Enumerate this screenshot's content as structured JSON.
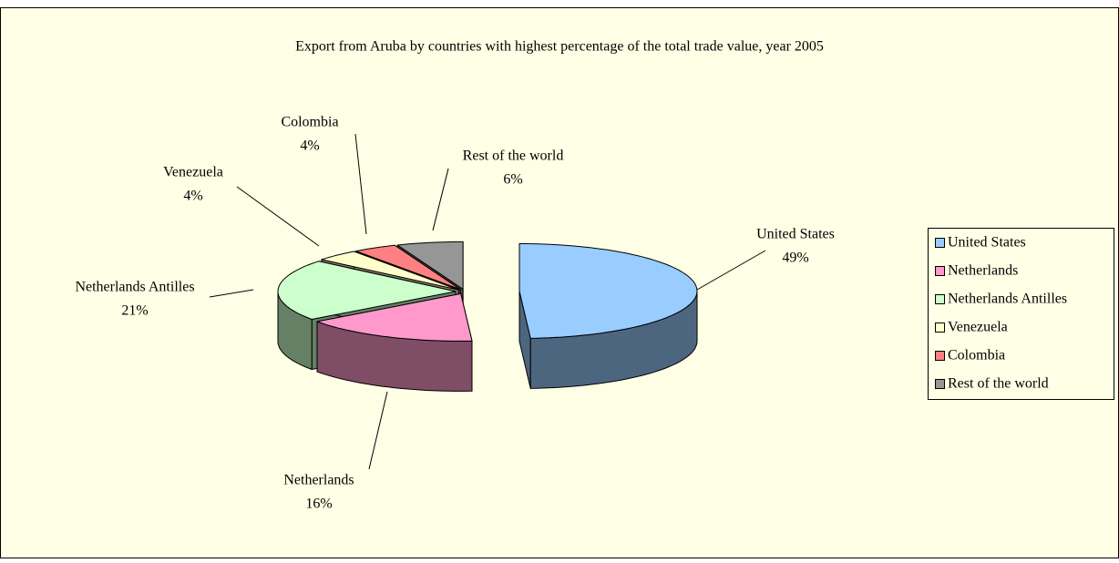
{
  "chart_data": {
    "type": "pie",
    "title": "Export from Aruba by countries with highest percentage of the total trade value, year 2005",
    "categories": [
      "United States",
      "Netherlands",
      "Netherlands Antilles",
      "Venezuela",
      "Colombia",
      "Rest of the world"
    ],
    "values": [
      49,
      16,
      21,
      4,
      4,
      6
    ],
    "value_labels": [
      "49%",
      "16%",
      "21%",
      "4%",
      "4%",
      "6%"
    ],
    "colors": [
      "#99ccff",
      "#ff99cc",
      "#ccffcc",
      "#ffffcc",
      "#ff8080",
      "#969696"
    ],
    "legend": "right"
  }
}
